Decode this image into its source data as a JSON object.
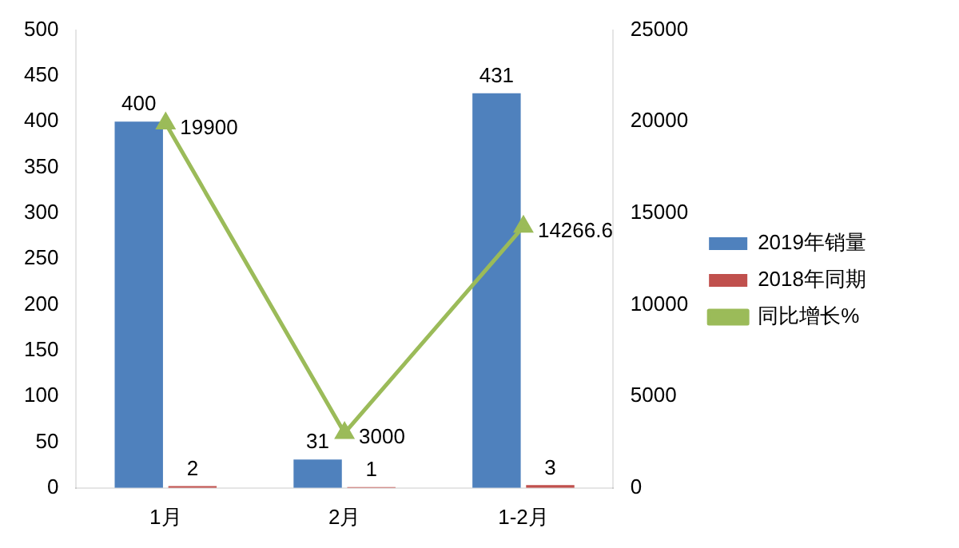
{
  "chart_data": {
    "type": "bar",
    "categories": [
      "1月",
      "2月",
      "1-2月"
    ],
    "series": [
      {
        "name": "2019年销量",
        "color": "#4f81bd",
        "values": [
          400,
          31,
          431
        ]
      },
      {
        "name": "2018年同期",
        "color": "#c0504d",
        "values": [
          2,
          1,
          3
        ]
      },
      {
        "name": "同比增长%",
        "type": "line",
        "axis": "y2",
        "color": "#9bbb59",
        "values": [
          19900,
          3000,
          14266.6
        ]
      }
    ],
    "ylim": [
      0,
      500
    ],
    "yticks": [
      0,
      50,
      100,
      150,
      200,
      250,
      300,
      350,
      400,
      450,
      500
    ],
    "y2lim": [
      0,
      25000
    ],
    "y2ticks": [
      0,
      5000,
      10000,
      15000,
      20000,
      25000
    ],
    "data_labels": true,
    "legend": "right",
    "marker": "triangle",
    "grid": false
  }
}
